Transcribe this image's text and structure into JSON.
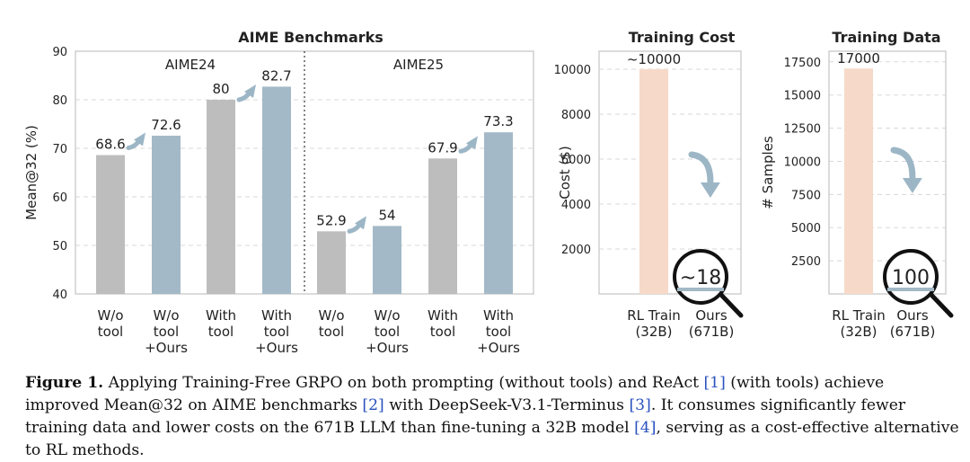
{
  "chart_data": [
    {
      "type": "bar",
      "title": "AIME Benchmarks",
      "ylabel": "Mean@32 (%)",
      "ylim": [
        40,
        90
      ],
      "yticks": [
        40,
        50,
        60,
        70,
        80,
        90
      ],
      "grid": true,
      "groups": [
        "AIME24",
        "AIME25"
      ],
      "categories": [
        [
          "W/o",
          "tool"
        ],
        [
          "W/o",
          "tool",
          "+Ours"
        ],
        [
          "With",
          "tool"
        ],
        [
          "With",
          "tool",
          "+Ours"
        ],
        [
          "W/o",
          "tool"
        ],
        [
          "W/o",
          "tool",
          "+Ours"
        ],
        [
          "With",
          "tool"
        ],
        [
          "With",
          "tool",
          "+Ours"
        ]
      ],
      "values": [
        68.6,
        72.6,
        80,
        82.7,
        52.9,
        54,
        67.9,
        73.3
      ],
      "labels": [
        "68.6",
        "72.6",
        "80",
        "82.7",
        "52.9",
        "54",
        "67.9",
        "73.3"
      ],
      "kinds": [
        "base",
        "ours",
        "base",
        "ours",
        "base",
        "ours",
        "base",
        "ours"
      ]
    },
    {
      "type": "bar",
      "title": "Training Cost",
      "ylabel": "Cost ($)",
      "ylim": [
        0,
        10800
      ],
      "yticks": [
        2000,
        4000,
        6000,
        8000,
        10000
      ],
      "grid": true,
      "categories": [
        [
          "RL Train",
          "(32B)"
        ],
        [
          "Ours",
          "(671B)"
        ]
      ],
      "values": [
        10000,
        18
      ],
      "labels": [
        "~10000",
        "~18"
      ],
      "kinds": [
        "rl",
        "ours"
      ]
    },
    {
      "type": "bar",
      "title": "Training Data",
      "ylabel": "# Samples",
      "ylim": [
        0,
        18300
      ],
      "yticks": [
        2500,
        5000,
        7500,
        10000,
        12500,
        15000,
        17500
      ],
      "grid": true,
      "categories": [
        [
          "RL Train",
          "(32B)"
        ],
        [
          "Ours",
          "(671B)"
        ]
      ],
      "values": [
        17000,
        100
      ],
      "labels": [
        "17000",
        "100"
      ],
      "kinds": [
        "rl",
        "ours"
      ]
    }
  ],
  "colors": {
    "base": "#bdbdbd",
    "ours": "#a3b9c7",
    "rl": "#f6d9c8",
    "arrow": "#9cb6c6",
    "axis": "#cccccc",
    "grid": "#d8d8d8",
    "ref": "#2a52be"
  },
  "caption": {
    "label": "Figure 1.",
    "segments": [
      {
        "t": " Applying Training-Free GRPO on both prompting (without tools) and ReAct "
      },
      {
        "t": "[1]",
        "ref": true
      },
      {
        "t": " (with tools) achieve improved Mean@32 on AIME benchmarks "
      },
      {
        "t": "[2]",
        "ref": true
      },
      {
        "t": " with DeepSeek-V3.1-Terminus "
      },
      {
        "t": "[3]",
        "ref": true
      },
      {
        "t": ". It consumes significantly fewer training data and lower costs on the 671B LLM than fine-tuning a 32B model "
      },
      {
        "t": "[4]",
        "ref": true
      },
      {
        "t": ", serving as a cost-effective alternative to RL methods."
      }
    ]
  }
}
